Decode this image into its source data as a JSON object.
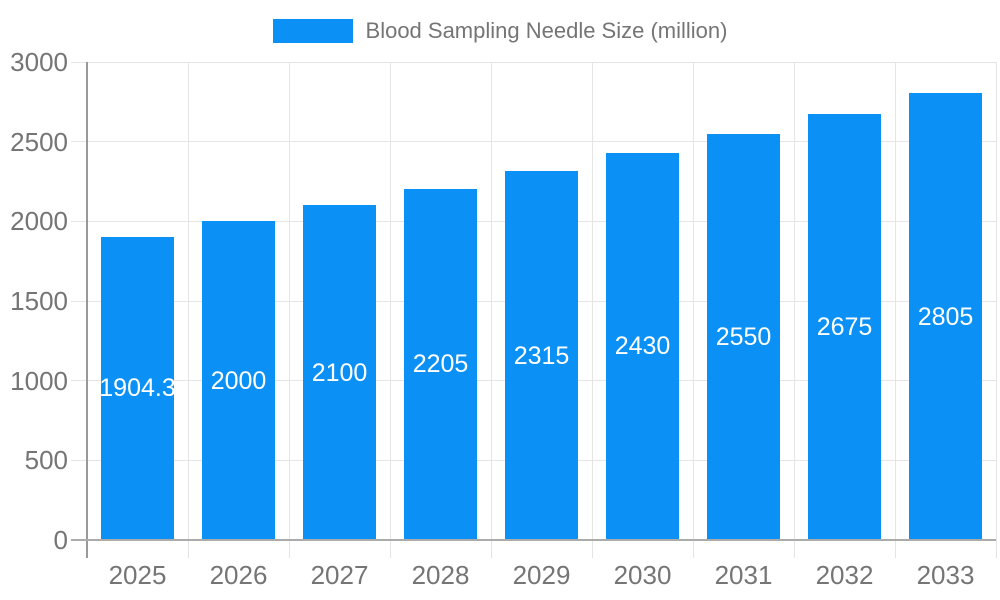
{
  "legend": {
    "label": "Blood Sampling Needle Size (million)"
  },
  "chart_data": {
    "type": "bar",
    "title": "Blood Sampling Needle Size (million)",
    "categories": [
      "2025",
      "2026",
      "2027",
      "2028",
      "2029",
      "2030",
      "2031",
      "2032",
      "2033"
    ],
    "values": [
      1904.3,
      2000,
      2100,
      2205,
      2315,
      2430,
      2550,
      2675,
      2805
    ],
    "bar_labels": [
      "1904.3",
      "2000",
      "2100",
      "2205",
      "2315",
      "2430",
      "2550",
      "2675",
      "2805"
    ],
    "xlabel": "",
    "ylabel": "",
    "ylim": [
      0,
      3000
    ],
    "yticks": [
      0,
      500,
      1000,
      1500,
      2000,
      2500,
      3000
    ],
    "grid": true,
    "legend_position": "top",
    "colors": {
      "bar": "#0b90f5",
      "grid": "#e5e5e5",
      "axis_y": "#999999",
      "axis_x": "#ababab",
      "tick_label": "#757575",
      "bar_label": "#ffffff",
      "background": "#ffffff"
    }
  }
}
